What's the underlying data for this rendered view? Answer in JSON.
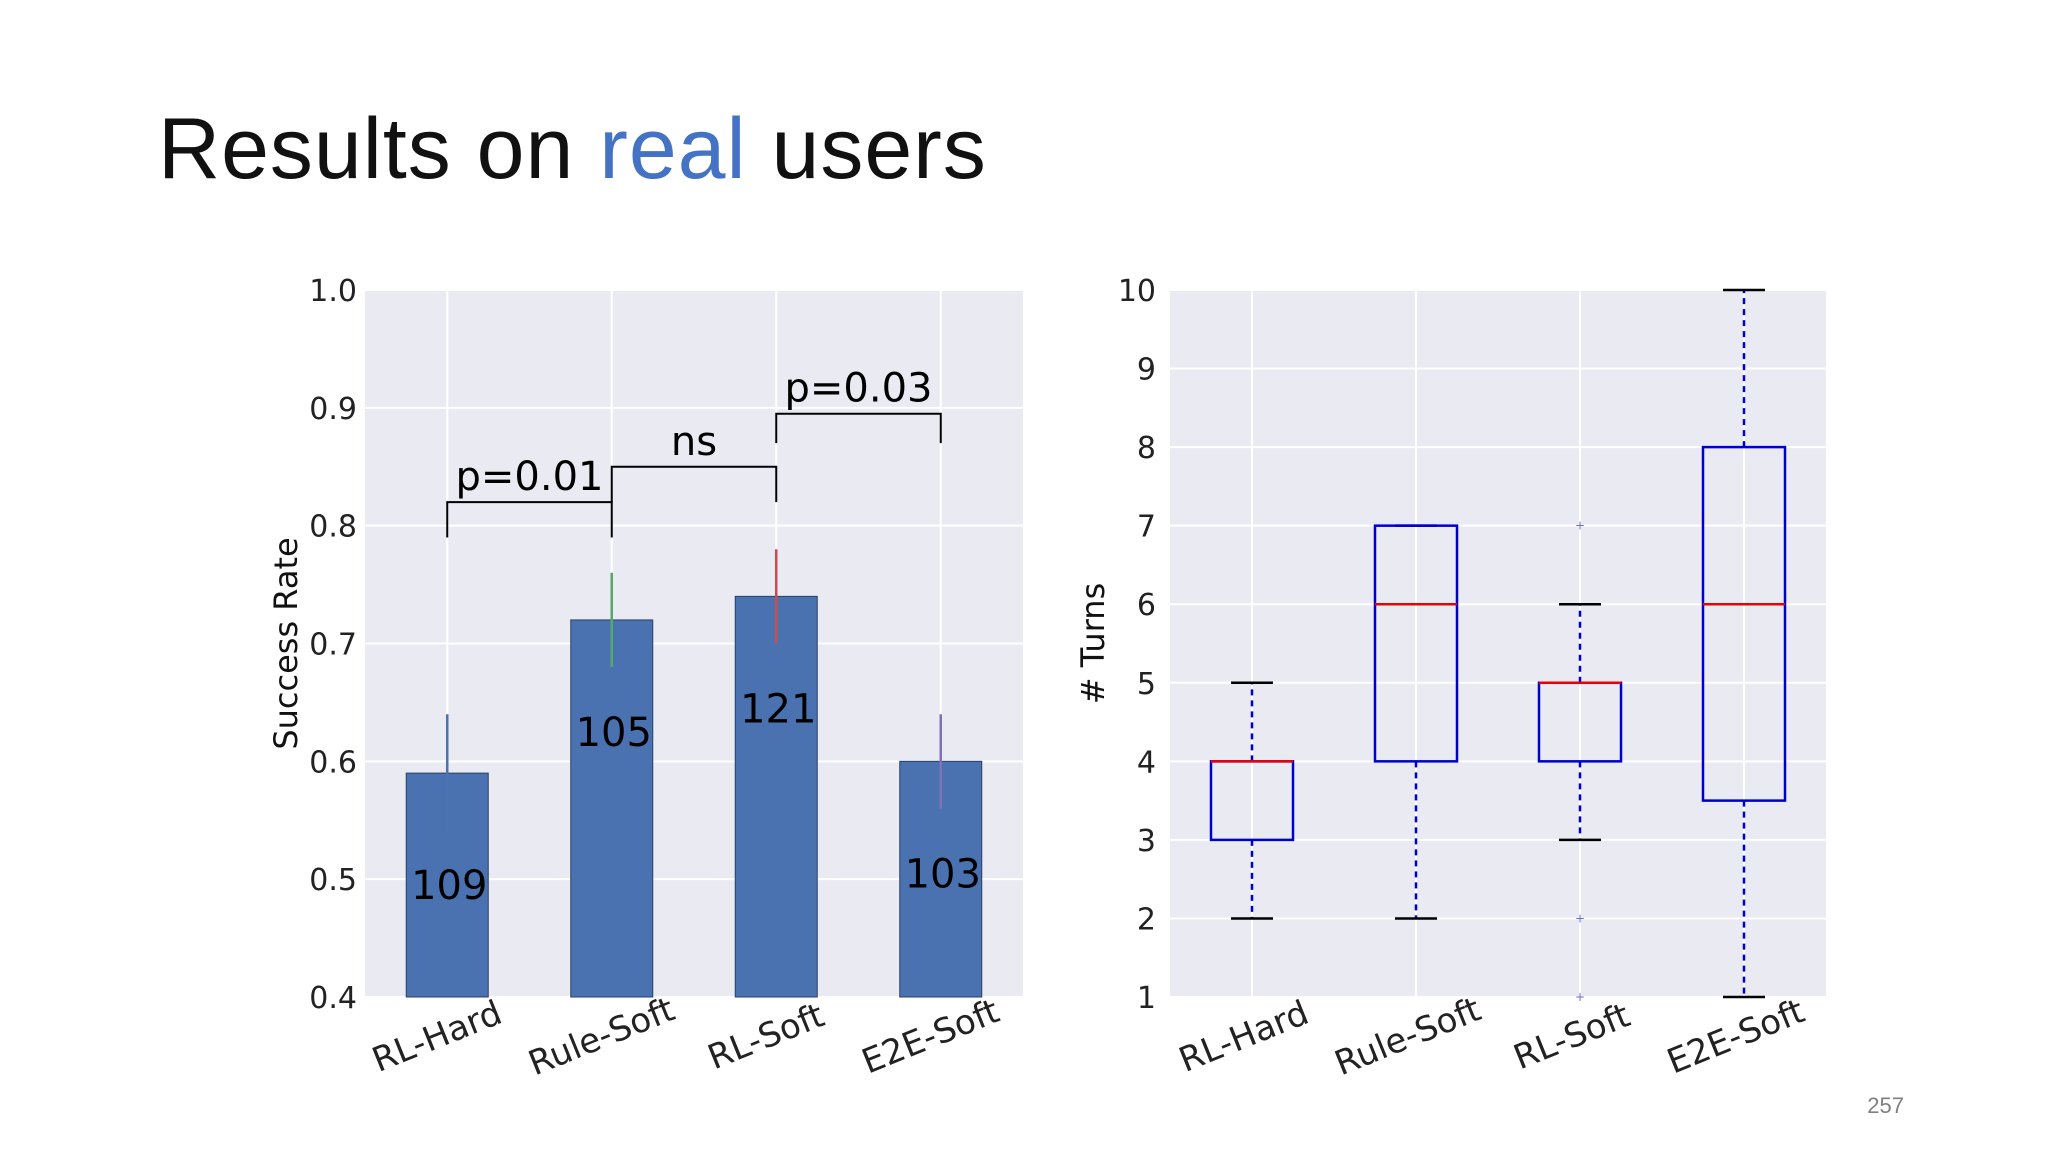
{
  "slide": {
    "title_prefix": "Results on ",
    "title_accent": "real",
    "title_suffix": " users",
    "page_number": "257"
  },
  "colors": {
    "accent": "#4472c4",
    "bar_fill": "#4a72b0",
    "plot_bg": "#eaeaf2",
    "grid": "#ffffff",
    "box_edge": "#0000cc",
    "median": "#e8000b"
  },
  "chart_data": [
    {
      "type": "bar",
      "title": "",
      "xlabel": "",
      "ylabel": "Success Rate",
      "ylim": [
        0.4,
        1.0
      ],
      "yticks": [
        0.4,
        0.5,
        0.6,
        0.7,
        0.8,
        0.9,
        1.0
      ],
      "ytick_labels": [
        "0.4",
        "0.5",
        "0.6",
        "0.7",
        "0.8",
        "0.9",
        "1.0"
      ],
      "grid": true,
      "categories": [
        "RL-Hard",
        "Rule-Soft",
        "RL-Soft",
        "E2E-Soft"
      ],
      "values": [
        0.59,
        0.72,
        0.74,
        0.6
      ],
      "error_bars": [
        {
          "low": 0.54,
          "high": 0.64,
          "color": "#4c72b0"
        },
        {
          "low": 0.68,
          "high": 0.76,
          "color": "#55a868"
        },
        {
          "low": 0.7,
          "high": 0.78,
          "color": "#c44e52"
        },
        {
          "low": 0.56,
          "high": 0.64,
          "color": "#8172b2"
        }
      ],
      "data_labels": [
        "109",
        "105",
        "121",
        "103"
      ],
      "data_label_values": [
        0.495,
        0.625,
        0.645,
        0.505
      ],
      "significance": [
        {
          "from": 0,
          "to": 1,
          "label": "p=0.01",
          "low": 0.79,
          "high": 0.82
        },
        {
          "from": 1,
          "to": 2,
          "label": "ns",
          "low": 0.82,
          "high": 0.85
        },
        {
          "from": 2,
          "to": 3,
          "label": "p=0.03",
          "low": 0.87,
          "high": 0.895
        }
      ]
    },
    {
      "type": "box",
      "title": "",
      "xlabel": "",
      "ylabel": "# Turns",
      "ylim": [
        1,
        10
      ],
      "yticks": [
        1,
        2,
        3,
        4,
        5,
        6,
        7,
        8,
        9,
        10
      ],
      "ytick_labels": [
        "1",
        "2",
        "3",
        "4",
        "5",
        "6",
        "7",
        "8",
        "9",
        "10"
      ],
      "grid": true,
      "categories": [
        "RL-Hard",
        "Rule-Soft",
        "RL-Soft",
        "E2E-Soft"
      ],
      "boxes": [
        {
          "whisker_low": 2,
          "q1": 3,
          "median": 4,
          "q3": 4,
          "whisker_high": 5,
          "outliers": []
        },
        {
          "whisker_low": 2,
          "q1": 4,
          "median": 6,
          "q3": 7,
          "whisker_high": 7,
          "outliers": []
        },
        {
          "whisker_low": 3,
          "q1": 4,
          "median": 5,
          "q3": 5,
          "whisker_high": 6,
          "outliers": [
            1,
            2,
            7
          ]
        },
        {
          "whisker_low": 1,
          "q1": 3.5,
          "median": 6,
          "q3": 8,
          "whisker_high": 10,
          "outliers": []
        }
      ]
    }
  ]
}
